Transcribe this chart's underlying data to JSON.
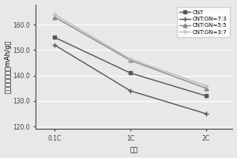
{
  "x_labels": [
    "0.1C",
    "1C",
    "2C"
  ],
  "x_positions": [
    0,
    1,
    2
  ],
  "series": [
    {
      "label": "CNT",
      "values": [
        155.0,
        141.0,
        132.0
      ],
      "color": "#555555",
      "marker": "s",
      "markersize": 3.5,
      "linewidth": 1.0,
      "linestyle": "-"
    },
    {
      "label": "CNT:GN=7:3",
      "values": [
        152.0,
        134.0,
        125.0
      ],
      "color": "#555555",
      "marker": "+",
      "markersize": 4.5,
      "linewidth": 1.0,
      "linestyle": "-"
    },
    {
      "label": "CNT:GN=5:5",
      "values": [
        163.0,
        146.0,
        135.0
      ],
      "color": "#888888",
      "marker": "^",
      "markersize": 3.5,
      "linewidth": 1.0,
      "linestyle": "-"
    },
    {
      "label": "CNT:GN=3:7",
      "values": [
        164.0,
        146.5,
        136.0
      ],
      "color": "#bbbbbb",
      "marker": "+",
      "markersize": 4.5,
      "linewidth": 1.0,
      "linestyle": "-"
    }
  ],
  "ylabel": "首次放电容量（mAh/g）",
  "xlabel": "倍率",
  "ylim": [
    119.0,
    168.0
  ],
  "yticks": [
    120.0,
    130.0,
    140.0,
    150.0,
    160.0
  ],
  "xlim": [
    -0.25,
    2.35
  ],
  "background_color": "#e8e8e8",
  "plot_bg_color": "#e8e8e8",
  "legend_fontsize": 5.0,
  "axis_label_fontsize": 6.0,
  "tick_fontsize": 5.5,
  "grid_color": "#ffffff",
  "grid_linewidth": 0.8
}
